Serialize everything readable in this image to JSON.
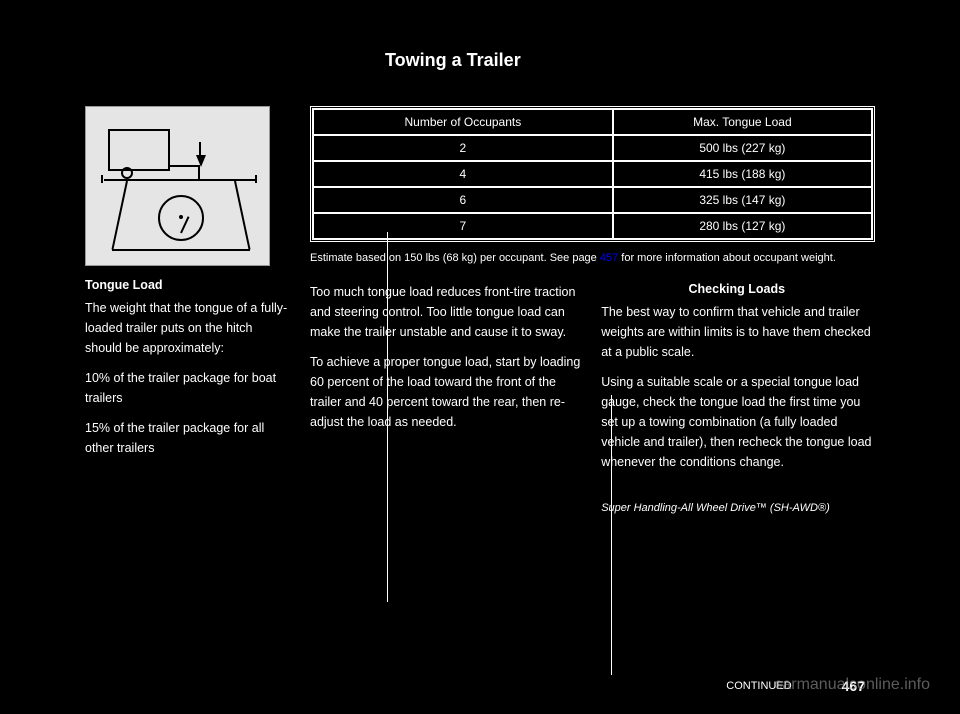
{
  "page": {
    "title": "Towing a Trailer",
    "number": "467",
    "continued": "CONTINUED",
    "watermark": "carmanualsonline.info"
  },
  "left": {
    "heading": "Tongue Load",
    "p1": "The weight that the tongue of a fully-loaded trailer puts on the hitch should be approximately:",
    "p2": "10% of the trailer package for boat trailers",
    "p3": "15% of the trailer package for all other trailers"
  },
  "table": {
    "header1": "Number of Occupants",
    "header2": "Max. Tongue Load",
    "row1_col1": "2",
    "row1_col2": "500 lbs (227 kg)",
    "row2_col1": "4",
    "row2_col2": "415 lbs (188 kg)",
    "row3_col1": "6",
    "row3_col2": "325 lbs (147 kg)",
    "row4_col1": "7",
    "row4_col2": "280 lbs (127 kg)",
    "note_prefix": "Estimate based on 150 lbs (68 kg) per occupant. See page ",
    "note_link": "457",
    "note_suffix": " for more information about occupant weight."
  },
  "middle": {
    "p1": "Too much tongue load reduces front-tire traction and steering control. Too little tongue load can make the trailer unstable and cause it to sway.",
    "p2": "To achieve a proper tongue load, start by loading 60 percent of the load toward the front of the trailer and 40 percent toward the rear, then re-adjust the load as needed."
  },
  "right": {
    "heading": "Checking Loads",
    "p1": "The best way to confirm that vehicle and trailer weights are within limits is to have them checked at a public scale.",
    "p2": "Using a suitable scale or a special tongue load gauge, check the tongue load the first time you set up a towing combination (a fully loaded vehicle and trailer), then recheck the tongue load whenever the conditions change.",
    "trademark": "Super Handling-All Wheel Drive™ (SH-AWD®)"
  }
}
